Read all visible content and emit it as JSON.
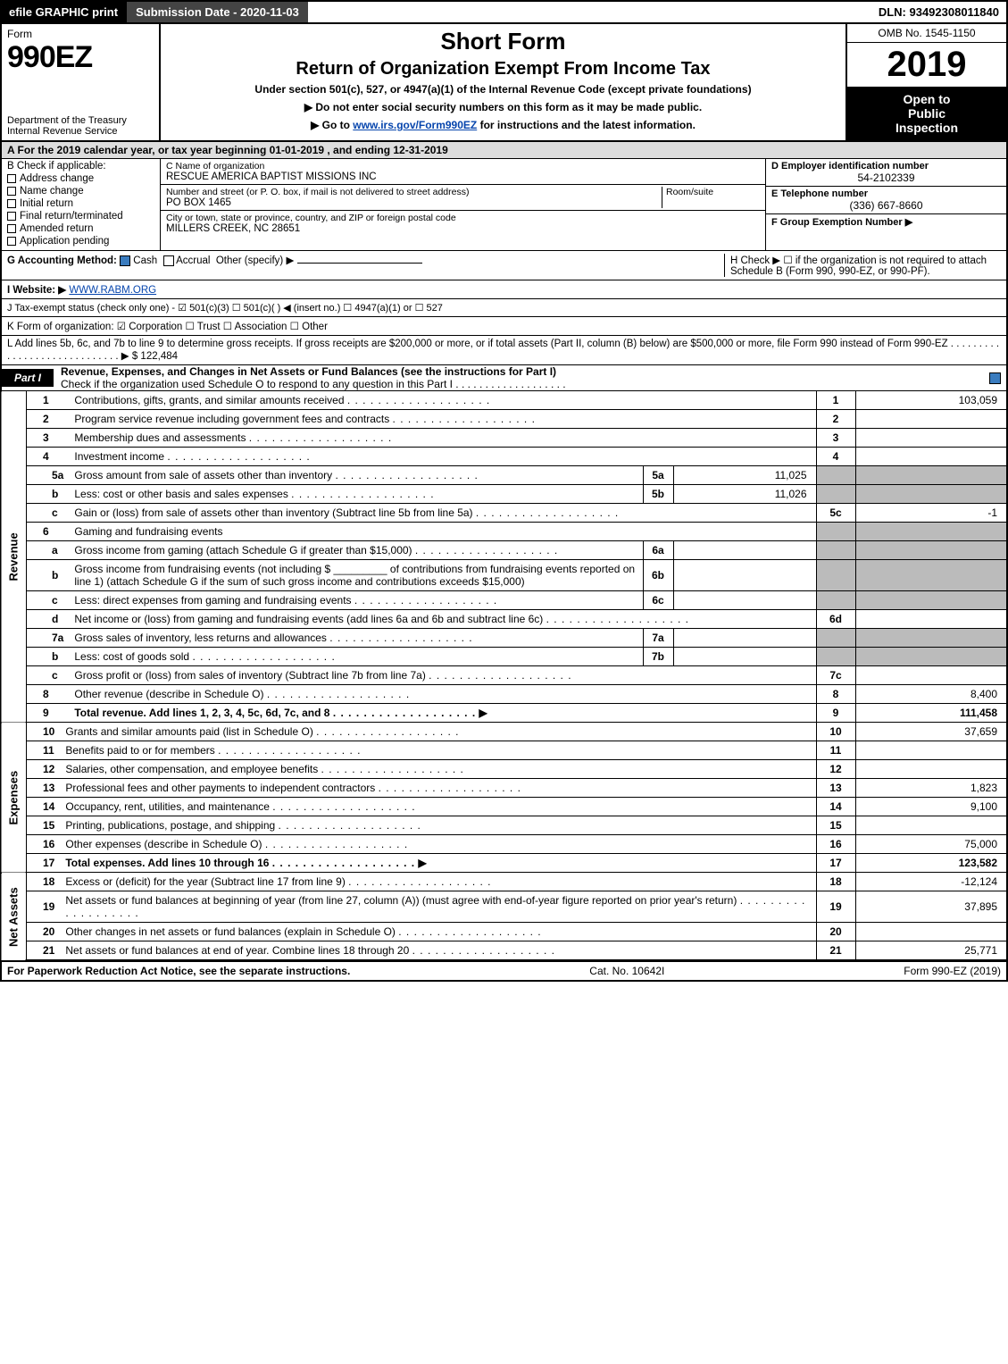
{
  "topbar": {
    "efile_label": "efile GRAPHIC print",
    "submission_label": "Submission Date - 2020-11-03",
    "dln_label": "DLN: 93492308011840"
  },
  "header": {
    "form_word": "Form",
    "form_code": "990EZ",
    "dept": "Department of the Treasury\nInternal Revenue Service",
    "title1": "Short Form",
    "title2": "Return of Organization Exempt From Income Tax",
    "subtitle": "Under section 501(c), 527, or 4947(a)(1) of the Internal Revenue Code (except private foundations)",
    "warn1": "▶ Do not enter social security numbers on this form as it may be made public.",
    "warn2_prefix": "▶ Go to ",
    "warn2_link": "www.irs.gov/Form990EZ",
    "warn2_suffix": " for instructions and the latest information.",
    "omb": "OMB No. 1545-1150",
    "year": "2019",
    "inspection_l1": "Open to",
    "inspection_l2": "Public",
    "inspection_l3": "Inspection"
  },
  "taxyear_bar": "A  For the 2019 calendar year, or tax year beginning 01-01-2019 , and ending 12-31-2019",
  "boxB": {
    "title": "B  Check if applicable:",
    "opts": [
      "Address change",
      "Name change",
      "Initial return",
      "Final return/terminated",
      "Amended return",
      "Application pending"
    ]
  },
  "boxC": {
    "name_label": "C Name of organization",
    "name_value": "RESCUE AMERICA BAPTIST MISSIONS INC",
    "addr1_label": "Number and street (or P. O. box, if mail is not delivered to street address)",
    "room_label": "Room/suite",
    "addr1_value": "PO BOX 1465",
    "addr2_label": "City or town, state or province, country, and ZIP or foreign postal code",
    "addr2_value": "MILLERS CREEK, NC  28651"
  },
  "boxD": {
    "label": "D Employer identification number",
    "value": "54-2102339"
  },
  "boxE": {
    "label": "E Telephone number",
    "value": "(336) 667-8660"
  },
  "boxF": {
    "label": "F Group Exemption Number  ▶",
    "value": ""
  },
  "lineG": {
    "label": "G Accounting Method:",
    "opts": [
      "Cash",
      "Accrual",
      "Other (specify) ▶"
    ],
    "checked": 0
  },
  "lineH": {
    "text": "H  Check ▶  ☐  if the organization is not required to attach Schedule B (Form 990, 990-EZ, or 990-PF)."
  },
  "lineI": {
    "label": "I Website: ▶",
    "value": "WWW.RABM.ORG"
  },
  "lineJ": {
    "label": "J Tax-exempt status (check only one) -  ☑ 501(c)(3)  ☐ 501(c)(  ) ◀ (insert no.)  ☐ 4947(a)(1) or  ☐ 527"
  },
  "lineK": {
    "label": "K Form of organization:   ☑ Corporation   ☐ Trust   ☐ Association   ☐ Other"
  },
  "lineL": {
    "text": "L Add lines 5b, 6c, and 7b to line 9 to determine gross receipts. If gross receipts are $200,000 or more, or if total assets (Part II, column (B) below) are $500,000 or more, file Form 990 instead of Form 990-EZ  .  .  .  .  .  .  .  .  .  .  .  .  .  .  .  .  .  .  .  .  .  .  .  .  .  .  .  .  .  ▶ $ 122,484"
  },
  "part1": {
    "tag": "Part I",
    "title": "Revenue, Expenses, and Changes in Net Assets or Fund Balances (see the instructions for Part I)",
    "subtitle": "Check if the organization used Schedule O to respond to any question in this Part I  .  .  .  .  .  .  .  .  .  .  .  .  .  .  .  .  .  .  ."
  },
  "revenue_lines": [
    {
      "n": "1",
      "desc": "Contributions, gifts, grants, and similar amounts received",
      "ln": "1",
      "val": "103,059"
    },
    {
      "n": "2",
      "desc": "Program service revenue including government fees and contracts",
      "ln": "2",
      "val": ""
    },
    {
      "n": "3",
      "desc": "Membership dues and assessments",
      "ln": "3",
      "val": ""
    },
    {
      "n": "4",
      "desc": "Investment income",
      "ln": "4",
      "val": ""
    },
    {
      "n": "5a",
      "sub": true,
      "desc": "Gross amount from sale of assets other than inventory",
      "subln": "5a",
      "subval": "11,025",
      "grey": true
    },
    {
      "n": "b",
      "sub": true,
      "desc": "Less: cost or other basis and sales expenses",
      "subln": "5b",
      "subval": "11,026",
      "grey": true
    },
    {
      "n": "c",
      "sub": true,
      "desc": "Gain or (loss) from sale of assets other than inventory (Subtract line 5b from line 5a)",
      "ln": "5c",
      "val": "-1"
    },
    {
      "n": "6",
      "desc": "Gaming and fundraising events",
      "noamt": true,
      "grey": true
    },
    {
      "n": "a",
      "sub": true,
      "desc": "Gross income from gaming (attach Schedule G if greater than $15,000)",
      "subln": "6a",
      "subval": "",
      "grey": true
    },
    {
      "n": "b",
      "sub": true,
      "desc": "Gross income from fundraising events (not including $ _________ of contributions from fundraising events reported on line 1) (attach Schedule G if the sum of such gross income and contributions exceeds $15,000)",
      "subln": "6b",
      "subval": "",
      "grey": true,
      "multi": true
    },
    {
      "n": "c",
      "sub": true,
      "desc": "Less: direct expenses from gaming and fundraising events",
      "subln": "6c",
      "subval": "",
      "grey": true
    },
    {
      "n": "d",
      "sub": true,
      "desc": "Net income or (loss) from gaming and fundraising events (add lines 6a and 6b and subtract line 6c)",
      "ln": "6d",
      "val": ""
    },
    {
      "n": "7a",
      "sub": true,
      "desc": "Gross sales of inventory, less returns and allowances",
      "subln": "7a",
      "subval": "",
      "grey": true
    },
    {
      "n": "b",
      "sub": true,
      "desc": "Less: cost of goods sold",
      "subln": "7b",
      "subval": "",
      "grey": true
    },
    {
      "n": "c",
      "sub": true,
      "desc": "Gross profit or (loss) from sales of inventory (Subtract line 7b from line 7a)",
      "ln": "7c",
      "val": ""
    },
    {
      "n": "8",
      "desc": "Other revenue (describe in Schedule O)",
      "ln": "8",
      "val": "8,400"
    },
    {
      "n": "9",
      "bold": true,
      "arrow": true,
      "desc": "Total revenue. Add lines 1, 2, 3, 4, 5c, 6d, 7c, and 8",
      "ln": "9",
      "val": "111,458"
    }
  ],
  "expense_lines": [
    {
      "n": "10",
      "desc": "Grants and similar amounts paid (list in Schedule O)",
      "ln": "10",
      "val": "37,659"
    },
    {
      "n": "11",
      "desc": "Benefits paid to or for members",
      "ln": "11",
      "val": ""
    },
    {
      "n": "12",
      "desc": "Salaries, other compensation, and employee benefits",
      "ln": "12",
      "val": ""
    },
    {
      "n": "13",
      "desc": "Professional fees and other payments to independent contractors",
      "ln": "13",
      "val": "1,823"
    },
    {
      "n": "14",
      "desc": "Occupancy, rent, utilities, and maintenance",
      "ln": "14",
      "val": "9,100"
    },
    {
      "n": "15",
      "desc": "Printing, publications, postage, and shipping",
      "ln": "15",
      "val": ""
    },
    {
      "n": "16",
      "desc": "Other expenses (describe in Schedule O)",
      "ln": "16",
      "val": "75,000"
    },
    {
      "n": "17",
      "bold": true,
      "arrow": true,
      "desc": "Total expenses. Add lines 10 through 16",
      "ln": "17",
      "val": "123,582"
    }
  ],
  "netassets_lines": [
    {
      "n": "18",
      "desc": "Excess or (deficit) for the year (Subtract line 17 from line 9)",
      "ln": "18",
      "val": "-12,124"
    },
    {
      "n": "19",
      "desc": "Net assets or fund balances at beginning of year (from line 27, column (A)) (must agree with end-of-year figure reported on prior year's return)",
      "ln": "19",
      "val": "37,895",
      "multi": true
    },
    {
      "n": "20",
      "desc": "Other changes in net assets or fund balances (explain in Schedule O)",
      "ln": "20",
      "val": ""
    },
    {
      "n": "21",
      "desc": "Net assets or fund balances at end of year. Combine lines 18 through 20",
      "ln": "21",
      "val": "25,771"
    }
  ],
  "side_labels": {
    "rev": "Revenue",
    "exp": "Expenses",
    "net": "Net Assets"
  },
  "footer": {
    "left": "For Paperwork Reduction Act Notice, see the separate instructions.",
    "mid": "Cat. No. 10642I",
    "right": "Form 990-EZ (2019)"
  },
  "colors": {
    "topbar_bg": "#000000",
    "check_blue": "#3a7cbf",
    "grey_cell": "#bbbbbb",
    "link": "#0645ad"
  }
}
